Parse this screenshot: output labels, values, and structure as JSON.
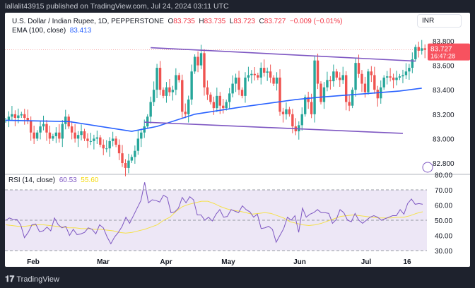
{
  "header": {
    "published": "lallalit43915 published on TradingView.com, Jul 24, 2024 03:11 UTC"
  },
  "legend": {
    "symbol": "U.S. Dollar / Indian Rupee, 1D, PEPPERSTONE",
    "o_label": "O",
    "o": "83.735",
    "h_label": "H",
    "h": "83.735",
    "l_label": "L",
    "l": "83.723",
    "c_label": "C",
    "c": "83.727",
    "change": "−0.009 (−0.01%)",
    "ema_label": "EMA (100, close)",
    "ema_value": "83.413"
  },
  "currency": "INR",
  "price_tag": {
    "price": "83.727",
    "countdown": "16:47:28"
  },
  "rsi_legend": {
    "label": "RSI (14, close)",
    "rsi": "60.53",
    "ma": "55.60"
  },
  "footer": {
    "brand": "TradingView"
  },
  "colors": {
    "up": "#26a69a",
    "down": "#ef5350",
    "ema": "#2962ff",
    "trendline": "#7e57c2",
    "rsi": "#7e57c2",
    "rsi_ma": "#f5e14a",
    "band": "#ede7f6"
  },
  "chart_data": [
    {
      "type": "candlestick",
      "title": "U.S. Dollar / Indian Rupee, 1D",
      "y_ticks": [
        "83.800",
        "83.600",
        "83.400",
        "83.200",
        "83.000",
        "82.800"
      ],
      "ylim": [
        82.72,
        83.86
      ],
      "x_ticks": [
        "Feb",
        "Mar",
        "Apr",
        "May",
        "Jun",
        "Jul",
        "16"
      ],
      "close": [
        83.15,
        83.18,
        83.2,
        83.17,
        83.19,
        83.2,
        83.17,
        83.15,
        83.05,
        83.0,
        83.05,
        83.1,
        83.12,
        83.05,
        83.0,
        83.02,
        83.05,
        83.0,
        83.12,
        83.18,
        83.1,
        83.05,
        83.0,
        83.03,
        83.06,
        83.0,
        82.98,
        82.98,
        83.0,
        83.01,
        82.95,
        82.92,
        82.92,
        82.98,
        83.0,
        82.95,
        82.88,
        82.8,
        82.76,
        82.82,
        82.85,
        82.9,
        83.0,
        83.05,
        83.1,
        83.18,
        83.3,
        83.4,
        83.58,
        83.4,
        83.35,
        83.42,
        83.38,
        83.4,
        83.52,
        83.48,
        83.22,
        83.2,
        83.32,
        83.55,
        83.67,
        83.6,
        83.7,
        83.42,
        83.36,
        83.3,
        83.25,
        83.35,
        83.27,
        83.25,
        83.3,
        83.37,
        83.45,
        83.5,
        83.4,
        83.35,
        83.5,
        83.52,
        83.53,
        83.52,
        83.5,
        83.58,
        83.54,
        83.55,
        83.5,
        83.45,
        83.5,
        83.22,
        83.2,
        83.24,
        83.2,
        83.1,
        83.06,
        83.11,
        83.2,
        83.34,
        83.3,
        83.2,
        83.64,
        83.45,
        83.3,
        83.42,
        83.48,
        83.47,
        83.55,
        83.5,
        83.48,
        83.52,
        83.3,
        83.27,
        83.4,
        83.62,
        83.53,
        83.45,
        83.38,
        83.55,
        83.52,
        83.4,
        83.33,
        83.42,
        83.5,
        83.51,
        83.5,
        83.48,
        83.5,
        83.51,
        83.52,
        83.55,
        83.58,
        83.65,
        83.75,
        83.72,
        83.74,
        83.727
      ],
      "ema_keypoints": [
        [
          0,
          83.15
        ],
        [
          20,
          83.14
        ],
        [
          40,
          83.06
        ],
        [
          48,
          83.1
        ],
        [
          60,
          83.2
        ],
        [
          75,
          83.26
        ],
        [
          92,
          83.32
        ],
        [
          100,
          83.34
        ],
        [
          115,
          83.37
        ],
        [
          125,
          83.39
        ],
        [
          132,
          83.413
        ]
      ],
      "trendlines": [
        {
          "from": [
            46,
            83.745
          ],
          "to": [
            130,
            83.635
          ]
        },
        {
          "from": [
            44,
            83.135
          ],
          "to": [
            126,
            83.043
          ]
        }
      ]
    },
    {
      "type": "line",
      "title": "RSI (14, close)",
      "y_ticks": [
        "80.00",
        "70.00",
        "60.00",
        "50.00",
        "40.00",
        "30.00"
      ],
      "ylim": [
        25,
        82
      ],
      "band": [
        30,
        70
      ],
      "rsi": [
        50,
        51.5,
        50.5,
        50.5,
        47,
        38.5,
        42,
        47,
        47.5,
        42.5,
        43,
        45.5,
        43,
        51.5,
        47,
        45,
        46,
        40,
        44,
        40.5,
        41,
        42,
        45,
        44,
        41,
        47,
        45,
        39,
        34.5,
        39,
        42,
        46,
        52,
        48,
        53,
        58,
        63,
        75,
        61.5,
        63.5,
        63,
        62,
        66.5,
        65,
        55,
        55.5,
        58,
        65,
        61.5,
        65.5,
        63.5,
        53.5,
        53.5,
        50,
        52,
        49.5,
        54,
        57,
        52,
        52.5,
        57,
        56,
        55,
        59.5,
        57,
        55.5,
        52,
        54,
        44.5,
        45,
        46,
        44,
        35.5,
        40,
        44.5,
        52,
        50,
        53,
        42,
        58,
        52,
        54,
        55,
        57,
        55,
        55,
        54.5,
        48,
        50.5,
        57,
        55,
        50,
        49,
        54.5,
        50,
        48,
        50,
        52,
        53,
        52,
        50,
        51,
        52,
        53,
        53,
        57,
        54,
        61,
        64,
        60.5,
        61,
        60.53
      ],
      "rsi_ma": [
        47,
        46.5,
        46,
        46,
        46.5,
        47,
        47,
        46.5,
        46,
        45.5,
        45,
        45,
        44.5,
        44.5,
        44,
        44,
        43.5,
        43,
        42,
        41.5,
        42,
        43,
        44,
        45.5,
        47,
        50,
        52,
        56,
        59,
        60.5,
        61.5,
        62.5,
        62.5,
        61,
        59,
        57.5,
        56.5,
        56,
        55,
        54,
        54.5,
        55,
        54.5,
        53,
        51.5,
        49,
        48,
        47,
        46.5,
        47,
        48,
        49.5,
        51,
        52.5,
        53,
        53.5,
        53,
        52.5,
        52,
        51.5,
        51.5,
        51.5,
        52,
        52,
        53,
        54.5,
        55.6
      ]
    }
  ]
}
